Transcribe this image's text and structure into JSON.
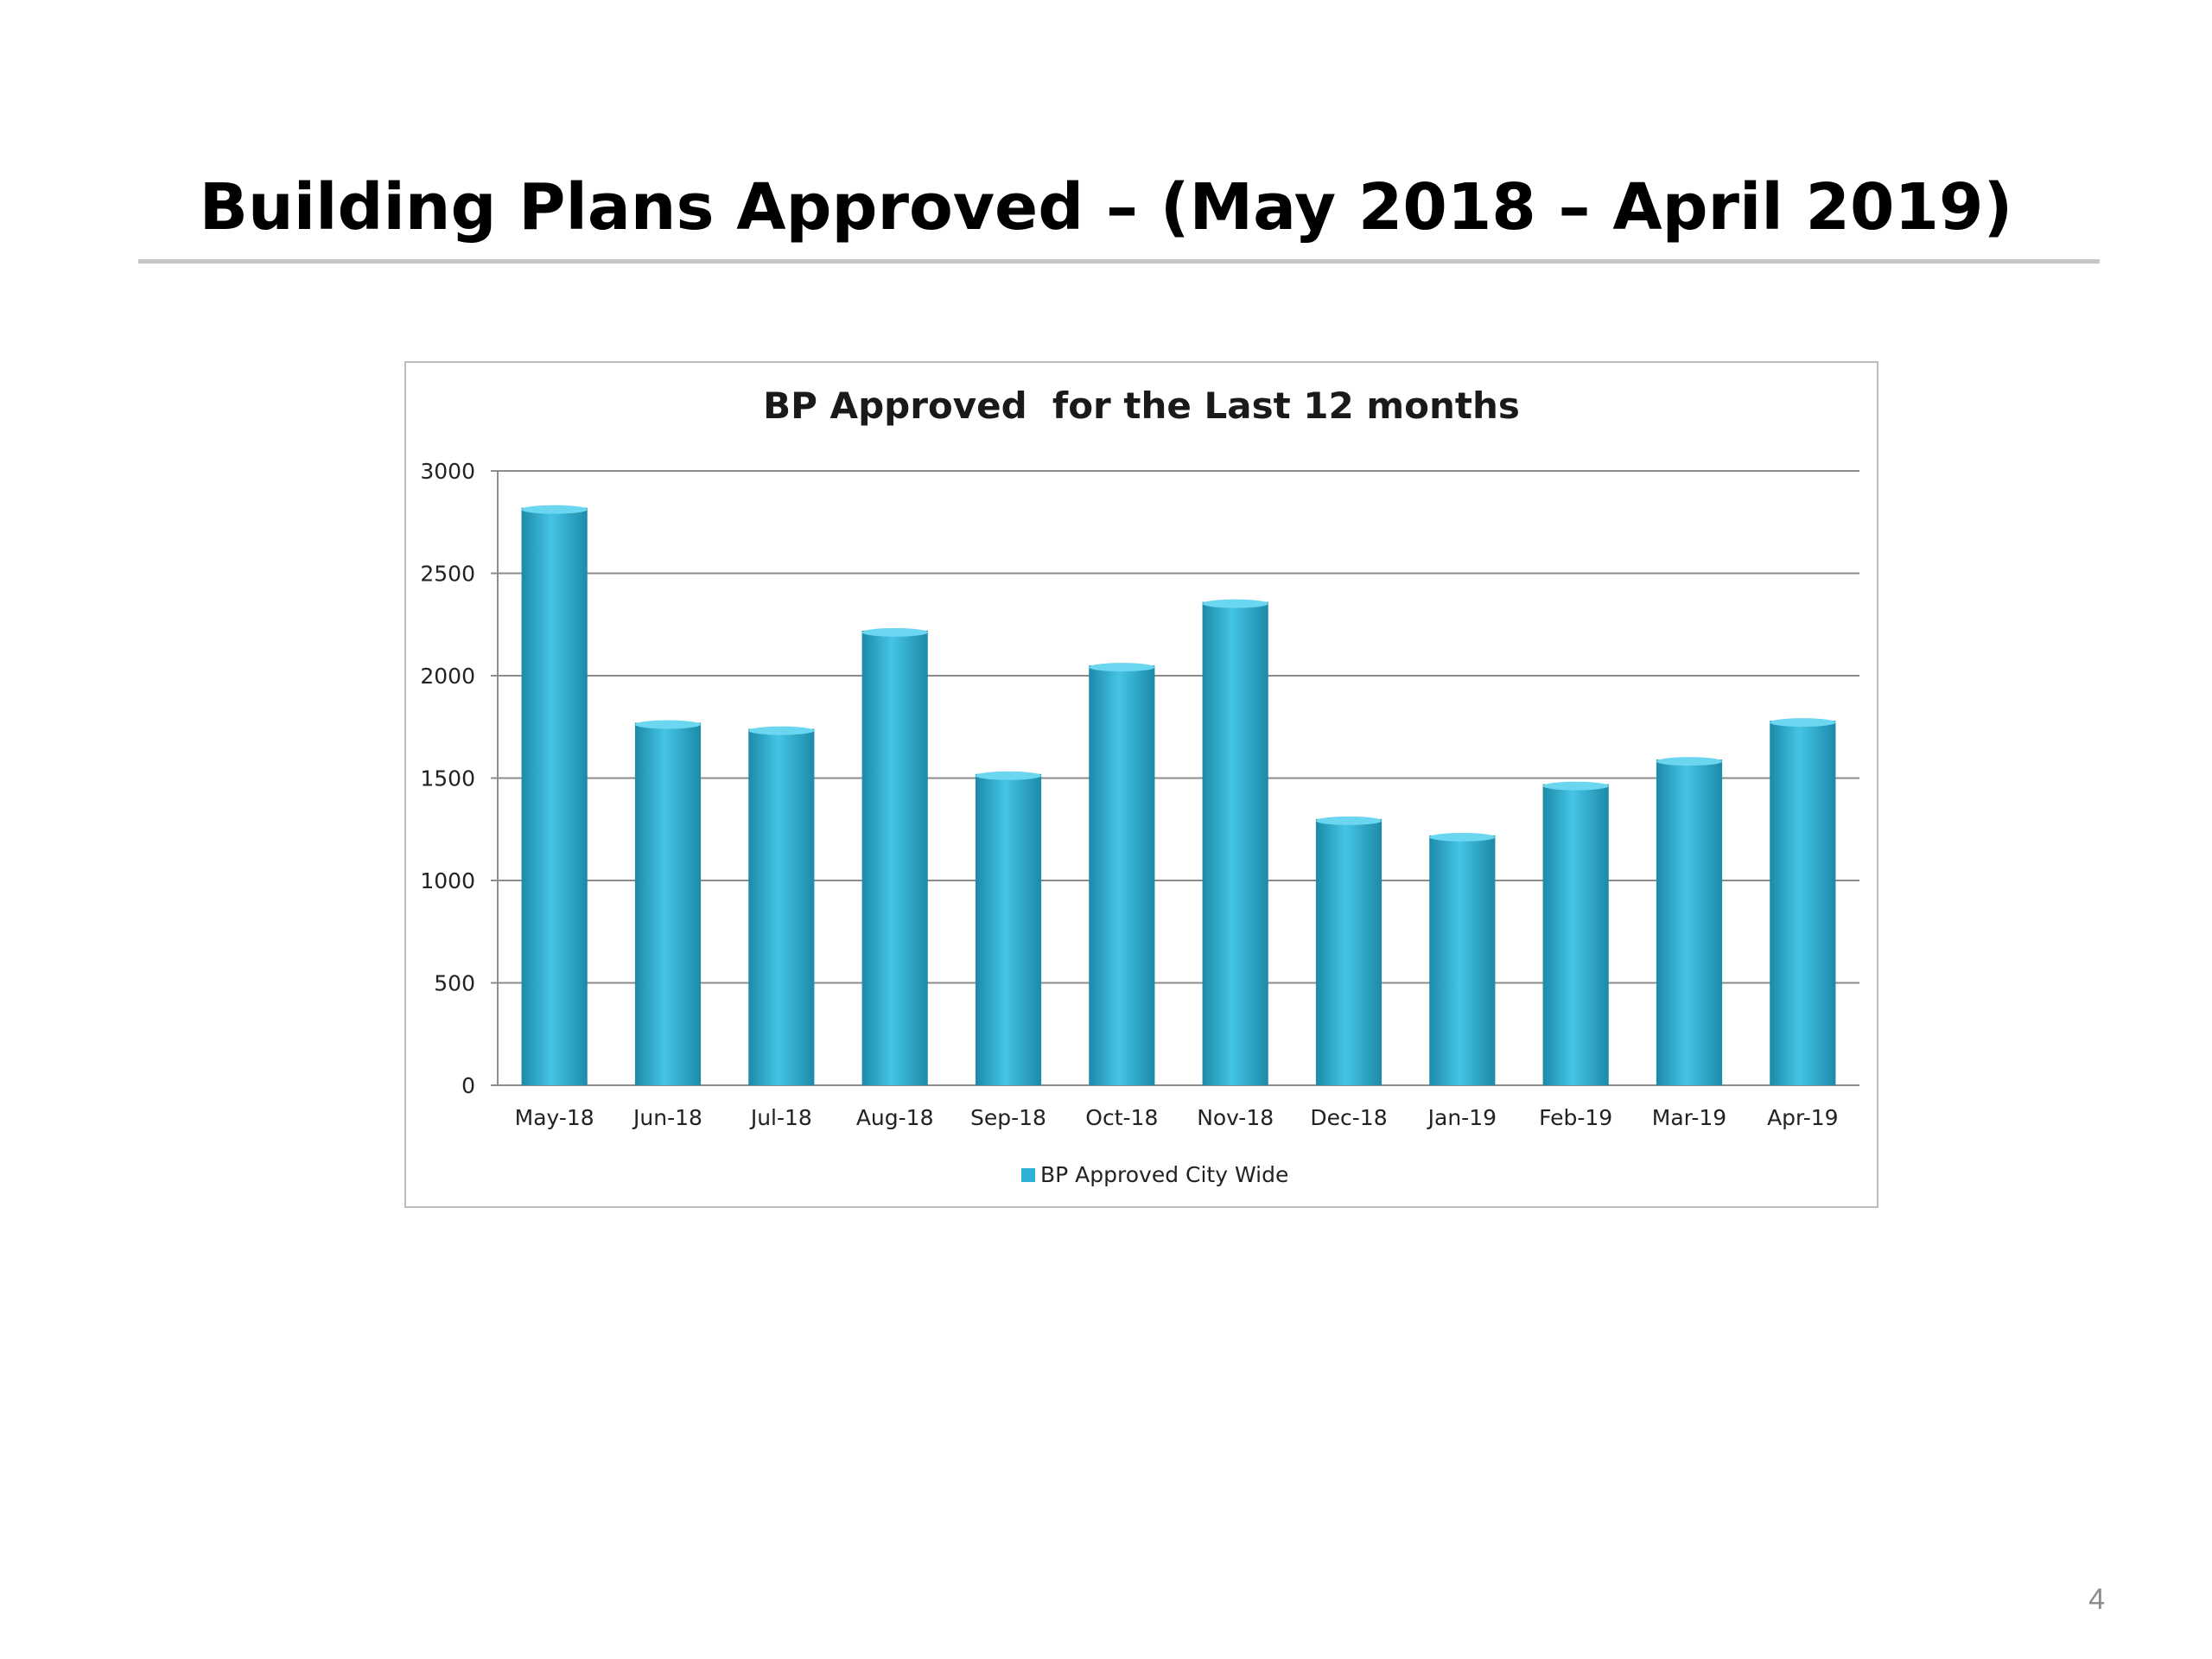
{
  "slide": {
    "title": "Building Plans Approved – (May 2018 – April 2019)",
    "page_number": "4"
  },
  "colors": {
    "bar_light": "#45c4e6",
    "bar_mid": "#2fb0d6",
    "bar_dark": "#1c8aa8",
    "bar_top": "#6ad6f0",
    "gridline": "#8c8c8c",
    "title_rule": "#c6c6c6"
  },
  "chart_data": {
    "type": "bar",
    "title": "BP Approved  for the Last 12 months",
    "xlabel": "",
    "ylabel": "",
    "categories": [
      "May-18",
      "Jun-18",
      "Jul-18",
      "Aug-18",
      "Sep-18",
      "Oct-18",
      "Nov-18",
      "Dec-18",
      "Jan-19",
      "Feb-19",
      "Mar-19",
      "Apr-19"
    ],
    "series": [
      {
        "name": "BP Approved City Wide",
        "values": [
          2820,
          1770,
          1740,
          2220,
          1520,
          2050,
          2360,
          1300,
          1220,
          1470,
          1590,
          1780
        ]
      }
    ],
    "ylim": [
      0,
      3000
    ],
    "yticks": [
      0,
      500,
      1000,
      1500,
      2000,
      2500,
      3000
    ],
    "grid": true,
    "legend_position": "bottom"
  }
}
